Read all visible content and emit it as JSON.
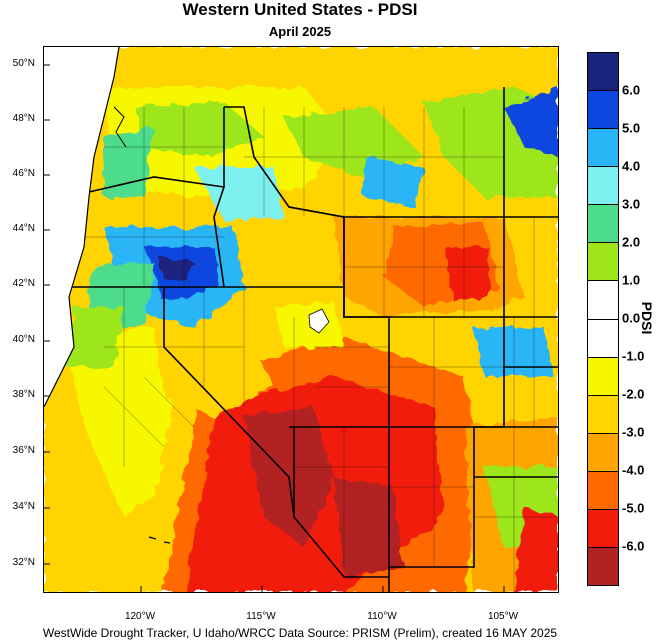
{
  "title": "Western United States - PDSI",
  "subtitle": "April 2025",
  "credit": "WestWide Drought Tracker, U Idaho/WRCC Data Source: PRISM (Prelim), created 16 MAY 2025",
  "latitude_labels": [
    "50°N",
    "48°N",
    "46°N",
    "44°N",
    "42°N",
    "40°N",
    "38°N",
    "36°N",
    "34°N",
    "32°N"
  ],
  "longitude_labels": [
    "120°W",
    "115°W",
    "110°W",
    "105°W"
  ],
  "colorbar": {
    "title": "PDSI",
    "tick_labels": [
      "6.0",
      "5.0",
      "4.0",
      "3.0",
      "2.0",
      "1.0",
      "0.0",
      "-1.0",
      "-2.0",
      "-3.0",
      "-4.0",
      "-5.0",
      "-6.0"
    ],
    "colors": [
      "#1a237e",
      "#0d47e0",
      "#29b6f6",
      "#7ff0f0",
      "#4ddc8c",
      "#9ee61a",
      "#ffffff",
      "#ffffff",
      "#f7f700",
      "#ffd400",
      "#ffa500",
      "#ff6a00",
      "#f21c0a",
      "#b22222"
    ]
  },
  "map": {
    "legend_colors": {
      "dark_red": "#b22222",
      "red": "#f21c0a",
      "orange_red": "#ff6a00",
      "orange": "#ffa500",
      "gold": "#ffd400",
      "yellow": "#f7f700",
      "white": "#ffffff",
      "lime": "#9ee61a",
      "green": "#4ddc8c",
      "cyan": "#7ff0f0",
      "sky": "#29b6f6",
      "blue": "#0d47e0",
      "navy": "#1a237e"
    }
  }
}
